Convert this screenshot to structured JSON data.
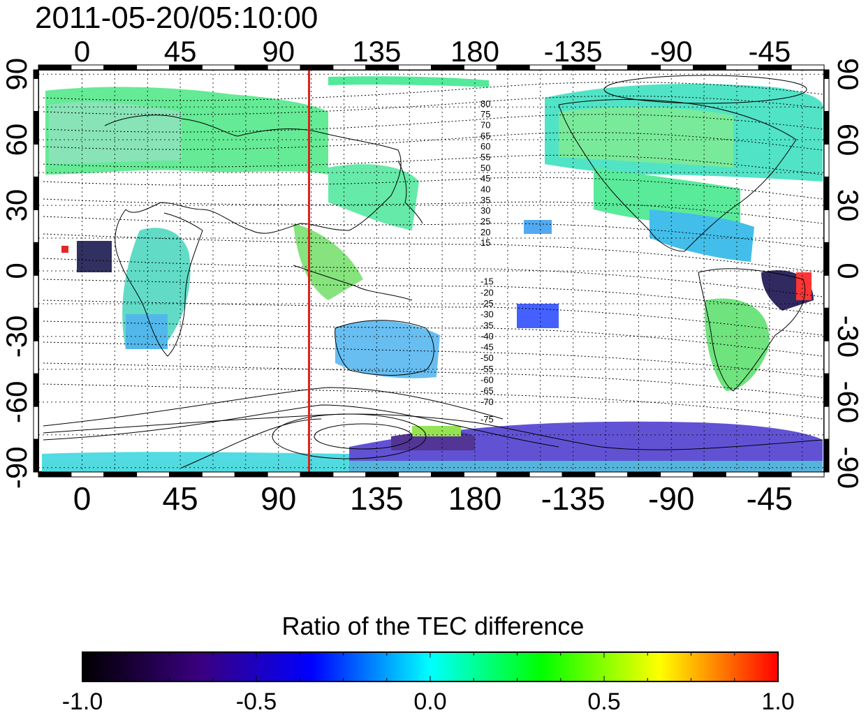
{
  "map": {
    "title": "2011-05-20/05:10:00",
    "projection": "equirectangular",
    "lon_ticks_top": [
      "0",
      "45",
      "90",
      "135",
      "180",
      "-135",
      "-90",
      "-45"
    ],
    "lon_ticks_bottom": [
      "0",
      "45",
      "90",
      "135",
      "180",
      "-135",
      "-90",
      "-45"
    ],
    "lat_ticks_left": [
      "90",
      "60",
      "30",
      "0",
      "-30",
      "-60",
      "-90"
    ],
    "lat_ticks_right": [
      "90",
      "60",
      "30",
      "0",
      "-30",
      "-60",
      "-90"
    ],
    "lon_tick_values": [
      0,
      45,
      90,
      135,
      180,
      225,
      270,
      315
    ],
    "lat_tick_values": [
      90,
      60,
      30,
      0,
      -30,
      -60,
      -90
    ],
    "lon_range": [
      -20,
      340
    ],
    "lat_range": [
      -92,
      92
    ],
    "grid": "dotted",
    "marker_line": {
      "longitude": 104,
      "color": "#e0201a"
    },
    "contour_labels_north": [
      "80",
      "75",
      "70",
      "65",
      "60",
      "55",
      "50",
      "45",
      "40",
      "35",
      "30",
      "25",
      "20",
      "15"
    ],
    "contour_labels_south": [
      "-15",
      "-20",
      "-25",
      "-30",
      "-35",
      "-40",
      "-45",
      "-50",
      "-55",
      "-60",
      "-65",
      "-70",
      "-75"
    ]
  },
  "colorbar": {
    "title": "Ratio of the TEC difference",
    "range": [
      -1.0,
      1.0
    ],
    "tick_labels": [
      "-1.0",
      "-0.5",
      "0.0",
      "0.5",
      "1.0"
    ],
    "tick_values": [
      -1.0,
      -0.5,
      0.0,
      0.5,
      1.0
    ],
    "colors": [
      "#000000",
      "#3a0080",
      "#0000ff",
      "#00ffff",
      "#00ff00",
      "#ffff00",
      "#ff0000"
    ]
  }
}
